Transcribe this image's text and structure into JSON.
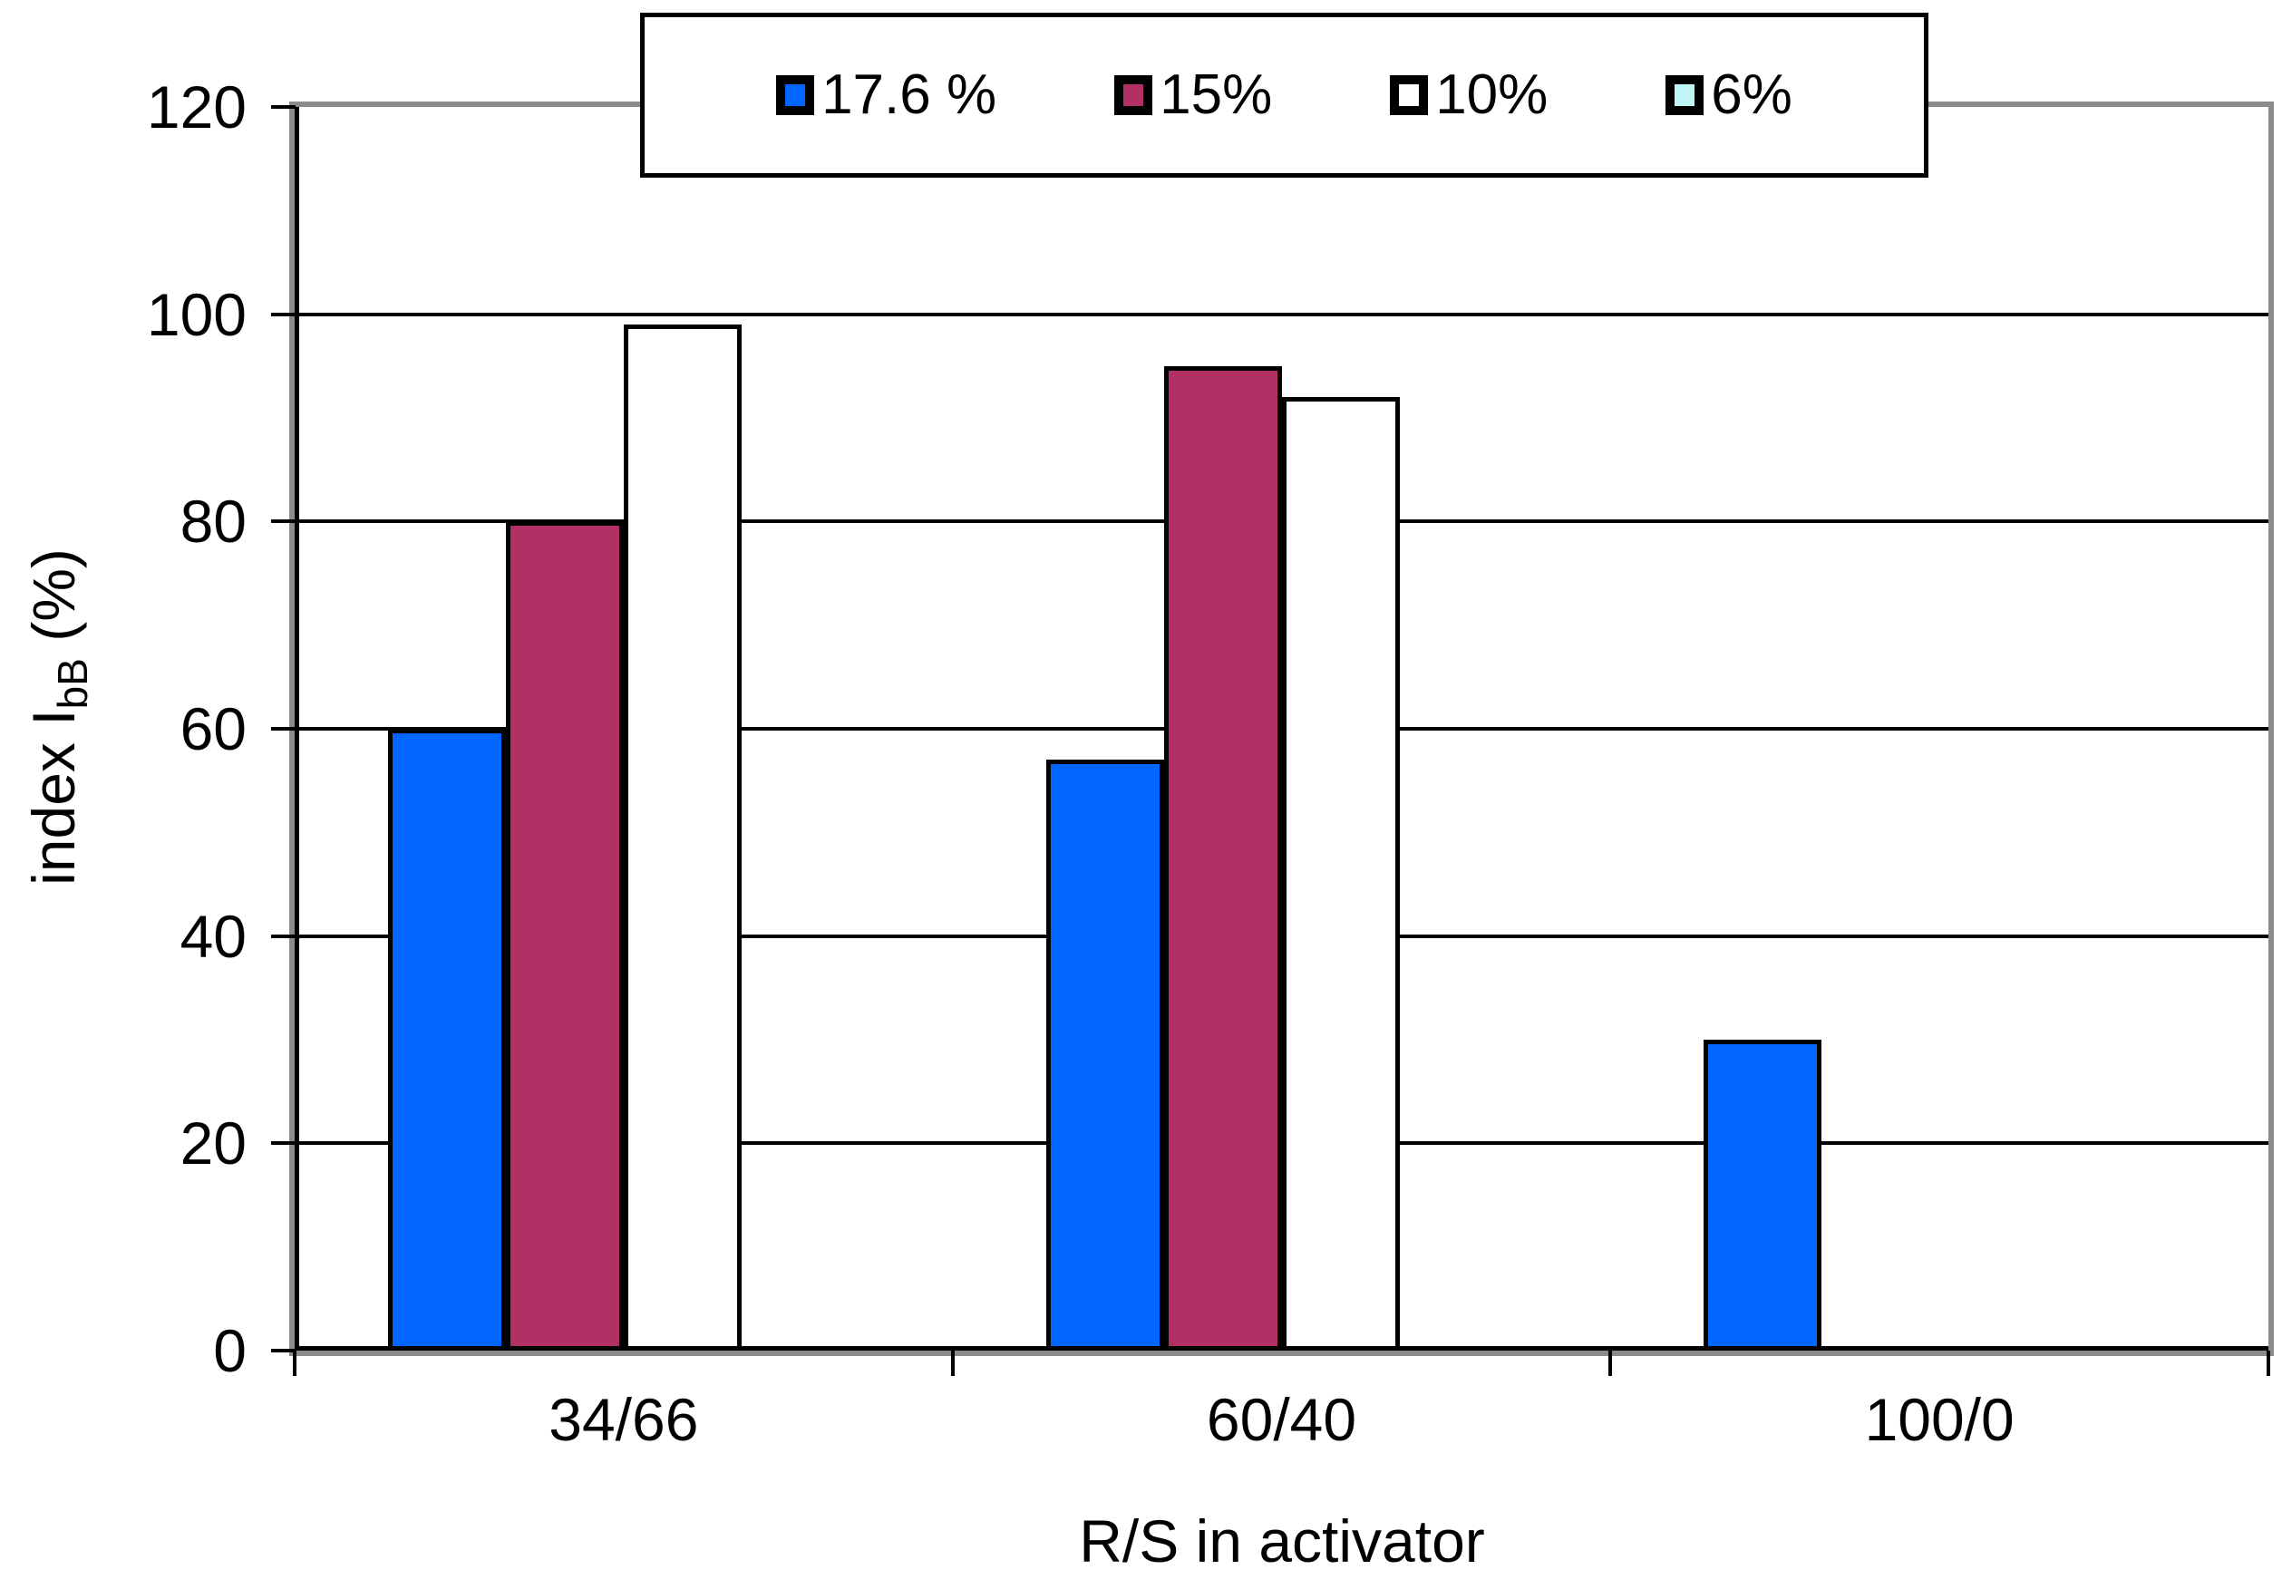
{
  "chart_data": {
    "type": "bar",
    "categories": [
      "34/66",
      "60/40",
      "100/0"
    ],
    "series": [
      {
        "name": "17.6 %",
        "color": "#0066FF",
        "values": [
          60,
          57,
          30
        ]
      },
      {
        "name": "15%",
        "color": "#B23064",
        "values": [
          80,
          95,
          0
        ]
      },
      {
        "name": "10%",
        "color": "#FFFFFF",
        "values": [
          99,
          92,
          0
        ]
      },
      {
        "name": "6%",
        "color": "#BFF5F5",
        "values": [
          0,
          0,
          0
        ]
      }
    ],
    "xlabel": "R/S in activator",
    "ylabel": {
      "prefix": "index I",
      "subscript": "bB",
      "suffix": " (%)"
    },
    "ylim": [
      0,
      120
    ],
    "yticks": [
      0,
      20,
      40,
      60,
      80,
      100,
      120
    ],
    "grid": "horizontal",
    "legend_position": "top",
    "colors": {
      "plot_border": "#8C8C8C",
      "gridline": "#000000",
      "bar_border": "#000000",
      "text": "#000000",
      "background": "#FFFFFF"
    }
  }
}
